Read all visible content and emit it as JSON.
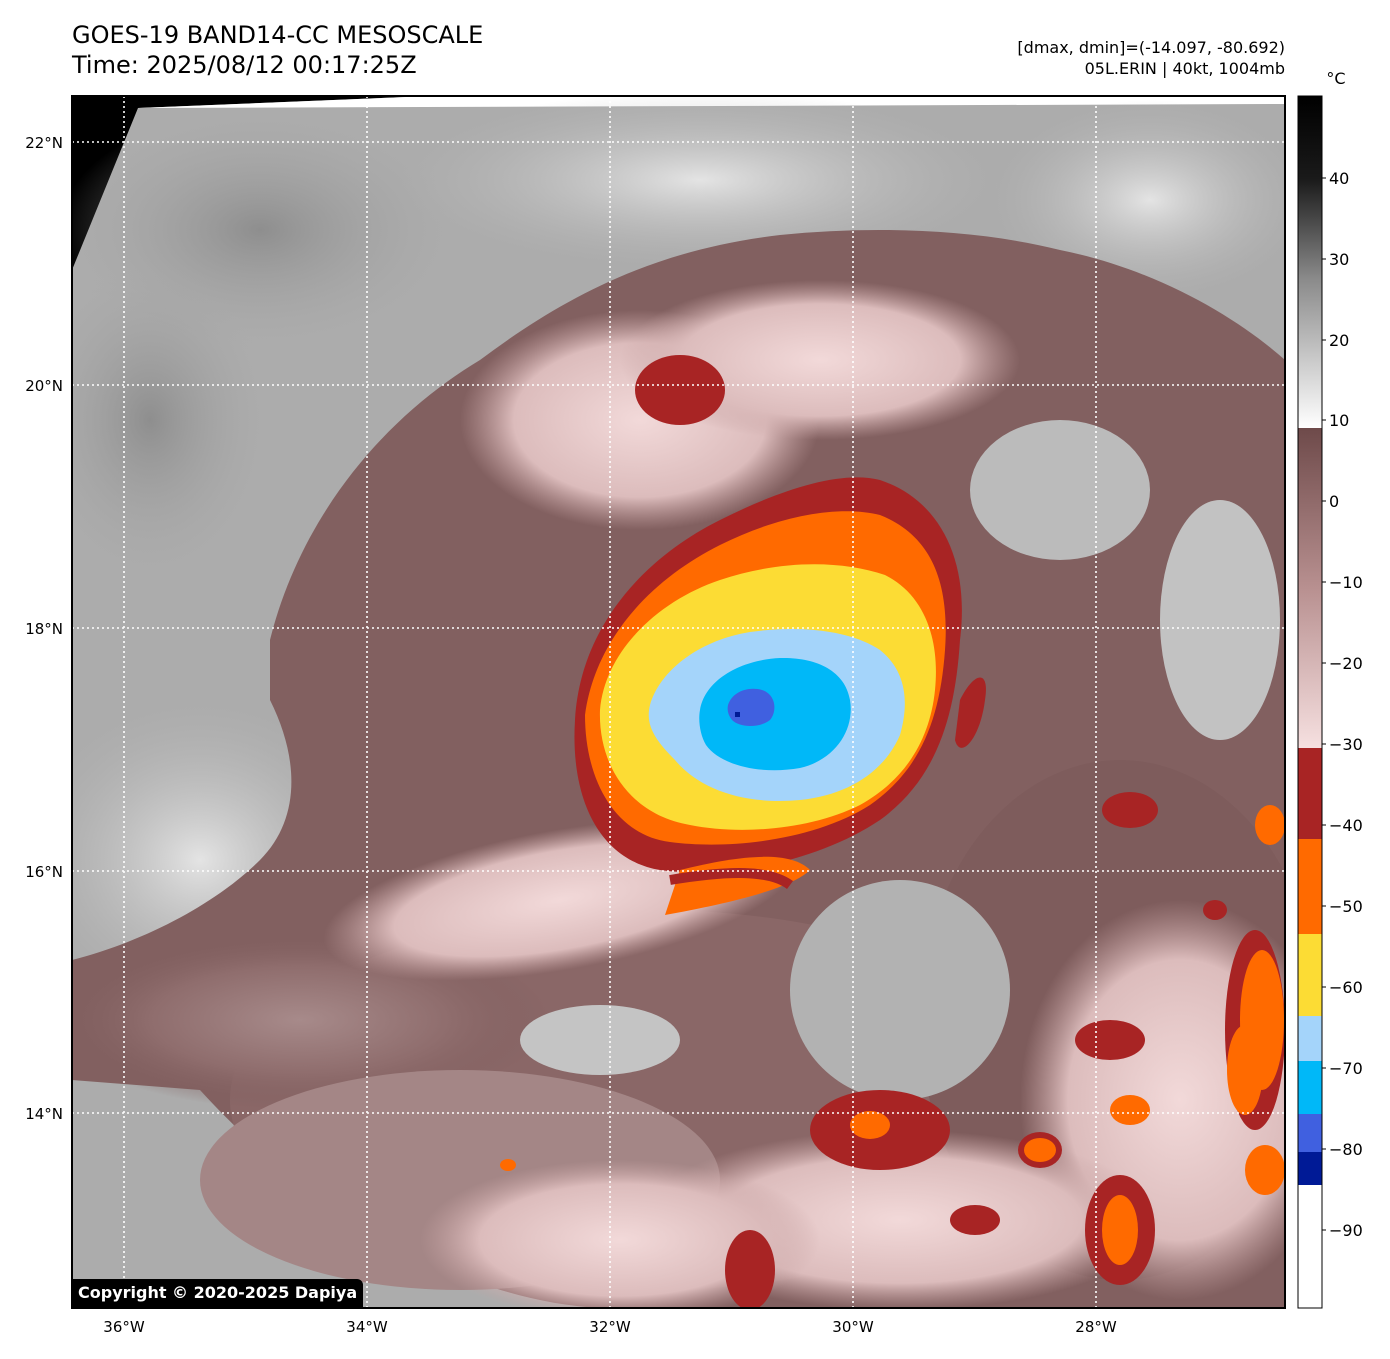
{
  "header": {
    "title_line1": "GOES-19 BAND14-CC MESOSCALE",
    "title_line2": "Time: 2025/08/12 00:17:25Z",
    "range_text": "[dmax, dmin]=(-14.097, -80.692)",
    "storm_text": "05L.ERIN | 40kt, 1004mb"
  },
  "map": {
    "lat_labels": [
      "22°N",
      "20°N",
      "18°N",
      "16°N",
      "14°N"
    ],
    "lon_labels": [
      "36°W",
      "34°W",
      "32°W",
      "30°W",
      "28°W"
    ],
    "grid": "dotted white"
  },
  "colorbar": {
    "unit": "°C",
    "ticks": [
      "40",
      "30",
      "20",
      "10",
      "0",
      "−10",
      "−20",
      "−30",
      "−40",
      "−50",
      "−60",
      "−70",
      "−80",
      "−90"
    ],
    "range": [
      -100,
      50
    ],
    "bands": [
      {
        "from": 50,
        "to": 10,
        "type": "grayscale",
        "top": "#000000",
        "bottom": "#ffffff"
      },
      {
        "from": 9,
        "to": -30,
        "type": "gradient",
        "top": "#6e4a4a",
        "bottom": "#f4dede"
      },
      {
        "from": -30,
        "to": -41,
        "color": "#a82424"
      },
      {
        "from": -41,
        "to": -52,
        "color": "#ff6a00"
      },
      {
        "from": -52,
        "to": -62,
        "color": "#fcdc34"
      },
      {
        "from": -62,
        "to": -68,
        "color": "#a4d4fa"
      },
      {
        "from": -68,
        "to": -75,
        "color": "#00b8f8"
      },
      {
        "from": -75,
        "to": -80,
        "color": "#4060e0"
      },
      {
        "from": -80,
        "to": -84,
        "color": "#001a96"
      },
      {
        "from": -84,
        "to": -100,
        "color": "#ffffff"
      }
    ]
  },
  "copyright": "Copyright © 2020-2025 Dapiya"
}
